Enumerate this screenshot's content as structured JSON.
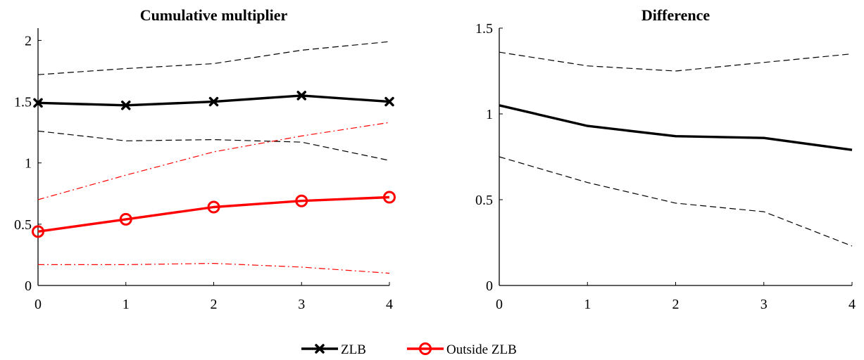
{
  "chart_data": [
    {
      "type": "line",
      "title": "Cumulative multiplier",
      "x": [
        0,
        1,
        2,
        3,
        4
      ],
      "xlim": [
        0,
        4
      ],
      "ylim": [
        0,
        2.1
      ],
      "xticks": [
        "0",
        "1",
        "2",
        "3",
        "4"
      ],
      "yticks": [
        "0",
        "0.5",
        "1",
        "1.5",
        "2"
      ],
      "series": [
        {
          "name": "ZLB",
          "values": [
            1.49,
            1.47,
            1.5,
            1.55,
            1.5
          ],
          "color": "#000000",
          "marker": "x-mark",
          "style": "solid"
        },
        {
          "name": "ZLB upper band",
          "values": [
            1.72,
            1.77,
            1.81,
            1.92,
            1.99
          ],
          "color": "#000000",
          "style": "dashed"
        },
        {
          "name": "ZLB lower band",
          "values": [
            1.26,
            1.18,
            1.19,
            1.17,
            1.02
          ],
          "color": "#000000",
          "style": "dashed"
        },
        {
          "name": "Outside ZLB",
          "values": [
            0.44,
            0.54,
            0.64,
            0.69,
            0.72
          ],
          "color": "#ff0000",
          "marker": "circle",
          "style": "solid"
        },
        {
          "name": "Outside ZLB upper band",
          "values": [
            0.7,
            0.9,
            1.09,
            1.22,
            1.33
          ],
          "color": "#ff0000",
          "style": "dashdot"
        },
        {
          "name": "Outside ZLB lower band",
          "values": [
            0.17,
            0.17,
            0.18,
            0.15,
            0.1
          ],
          "color": "#ff0000",
          "style": "dashdot"
        }
      ]
    },
    {
      "type": "line",
      "title": "Difference",
      "x": [
        0,
        1,
        2,
        3,
        4
      ],
      "xlim": [
        0,
        4
      ],
      "ylim": [
        0,
        1.5
      ],
      "xticks": [
        "0",
        "1",
        "2",
        "3",
        "4"
      ],
      "yticks": [
        "0",
        "0.5",
        "1",
        "1.5"
      ],
      "series": [
        {
          "name": "Difference",
          "values": [
            1.05,
            0.93,
            0.87,
            0.86,
            0.79
          ],
          "color": "#000000",
          "style": "solid"
        },
        {
          "name": "Difference upper band",
          "values": [
            1.36,
            1.28,
            1.25,
            1.3,
            1.35
          ],
          "color": "#000000",
          "style": "dashed"
        },
        {
          "name": "Difference lower band",
          "values": [
            0.75,
            0.6,
            0.48,
            0.43,
            0.23
          ],
          "color": "#000000",
          "style": "dashed"
        }
      ]
    }
  ],
  "legend": {
    "position": "bottom-center",
    "entries": [
      {
        "label": "ZLB",
        "color": "#000000",
        "marker": "x-mark"
      },
      {
        "label": "Outside ZLB",
        "color": "#ff0000",
        "marker": "circle"
      }
    ]
  }
}
